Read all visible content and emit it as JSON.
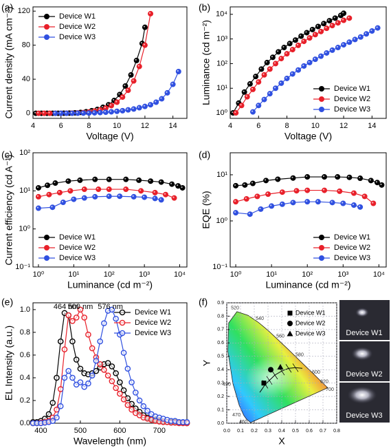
{
  "chart_data": [
    {
      "type": "line",
      "panel_label": "(a)",
      "x_label": "Voltage (V)",
      "y_label": "Current density (mA cm⁻²)",
      "xlim": [
        4,
        15
      ],
      "xticks": [
        4,
        6,
        8,
        10,
        12,
        14
      ],
      "ylim": [
        -6,
        125
      ],
      "yticks": [
        0,
        40,
        80,
        120
      ],
      "legend": "upper left",
      "series": [
        {
          "name": "Device W1",
          "color": "#000000",
          "x": [
            4.2,
            4.6,
            5,
            5.4,
            5.8,
            6.2,
            6.6,
            7,
            7.4,
            7.8,
            8.2,
            8.6,
            9,
            9.4,
            9.8,
            10.2,
            10.6,
            11,
            11.4,
            11.8,
            12
          ],
          "values": [
            0,
            0,
            0,
            0,
            0,
            0.1,
            0.2,
            0.5,
            1,
            1.8,
            3,
            4.5,
            7,
            10,
            15,
            22,
            32,
            45,
            62,
            82,
            101
          ]
        },
        {
          "name": "Device W2",
          "color": "#e8202a",
          "x": [
            4.4,
            4.8,
            5.2,
            5.6,
            6,
            6.4,
            6.8,
            7.2,
            7.6,
            8,
            8.4,
            8.8,
            9.2,
            9.6,
            10,
            10.4,
            10.8,
            11.2,
            11.6,
            12,
            12.4
          ],
          "values": [
            0,
            0,
            0,
            0,
            0,
            0.1,
            0.2,
            0.4,
            0.8,
            1.5,
            2.6,
            4,
            6,
            9,
            13,
            19,
            27,
            38,
            55,
            80,
            117
          ]
        },
        {
          "name": "Device W3",
          "color": "#3050e0",
          "x": [
            5.6,
            6,
            6.4,
            6.8,
            7.2,
            7.6,
            8,
            8.4,
            8.8,
            9.2,
            9.6,
            10,
            10.4,
            10.8,
            11.2,
            11.6,
            12,
            12.4,
            12.8,
            13.2,
            13.6,
            14,
            14.4
          ],
          "values": [
            0,
            0,
            0,
            0,
            0.1,
            0.2,
            0.3,
            0.5,
            0.8,
            1.2,
            1.7,
            2.3,
            3,
            4,
            5,
            6.5,
            8,
            10,
            13,
            17,
            24,
            34,
            49
          ]
        }
      ]
    },
    {
      "type": "line",
      "panel_label": "(b)",
      "x_label": "Voltage (V)",
      "y_label": "Luminance (cd m⁻²)",
      "xlim": [
        4,
        15
      ],
      "xticks": [
        4,
        6,
        8,
        10,
        12,
        14
      ],
      "yscale": "log",
      "ylim": [
        0.6,
        20000
      ],
      "yticks": [
        {
          "value": 1,
          "label": "10⁰"
        },
        {
          "value": 10,
          "label": "10¹"
        },
        {
          "value": 100,
          "label": "10²"
        },
        {
          "value": 1000,
          "label": "10³"
        },
        {
          "value": 10000,
          "label": "10⁴"
        }
      ],
      "legend": "lower right",
      "series": [
        {
          "name": "Device W1",
          "color": "#000000",
          "x": [
            4.2,
            4.6,
            5,
            5.4,
            5.8,
            6.2,
            6.6,
            7,
            7.4,
            7.8,
            8.2,
            8.6,
            9,
            9.4,
            9.8,
            10.2,
            10.6,
            11,
            11.4,
            11.8,
            12
          ],
          "values": [
            1,
            2.5,
            7,
            15,
            30,
            60,
            110,
            180,
            300,
            450,
            650,
            900,
            1300,
            1800,
            2400,
            3200,
            4200,
            5500,
            7000,
            9000,
            11000
          ]
        },
        {
          "name": "Device W2",
          "color": "#e8202a",
          "x": [
            4.4,
            4.8,
            5.2,
            5.6,
            6,
            6.4,
            6.8,
            7.2,
            7.6,
            8,
            8.4,
            8.8,
            9.2,
            9.6,
            10,
            10.4,
            10.8,
            11.2,
            11.6,
            12,
            12.4
          ],
          "values": [
            1,
            2,
            4.5,
            9,
            18,
            35,
            60,
            100,
            160,
            250,
            370,
            550,
            800,
            1100,
            1500,
            2000,
            2700,
            3500,
            4500,
            5700,
            7000
          ]
        },
        {
          "name": "Device W3",
          "color": "#3050e0",
          "x": [
            5.6,
            6,
            6.4,
            6.8,
            7.2,
            7.6,
            8,
            8.4,
            8.8,
            9.2,
            9.6,
            10,
            10.4,
            10.8,
            11.2,
            11.6,
            12,
            12.4,
            12.8,
            13.2,
            13.6,
            14,
            14.4
          ],
          "values": [
            1.1,
            2,
            3.5,
            6,
            10,
            16,
            25,
            38,
            55,
            80,
            110,
            150,
            200,
            270,
            350,
            450,
            580,
            740,
            950,
            1200,
            1600,
            2100,
            2800
          ]
        }
      ]
    },
    {
      "type": "line",
      "panel_label": "(c)",
      "x_label": "Luminance (cd m⁻²)",
      "y_label": "Current efficiency (cd A⁻¹)",
      "xscale": "log",
      "xlim": [
        0.7,
        16000
      ],
      "xticks": [
        {
          "value": 1,
          "label": "10⁰"
        },
        {
          "value": 10,
          "label": "10¹"
        },
        {
          "value": 100,
          "label": "10²"
        },
        {
          "value": 1000,
          "label": "10³"
        },
        {
          "value": 10000,
          "label": "10⁴"
        }
      ],
      "yscale": "log",
      "ylim": [
        0.1,
        100
      ],
      "yticks": [
        {
          "value": 0.1,
          "label": "10⁻¹"
        },
        {
          "value": 1,
          "label": "10⁰"
        },
        {
          "value": 10,
          "label": "10¹"
        },
        {
          "value": 100,
          "label": "10²"
        }
      ],
      "legend": "lower left",
      "series": [
        {
          "name": "Device W1",
          "color": "#000000",
          "x": [
            1,
            1.8,
            3,
            7,
            15,
            40,
            100,
            300,
            700,
            1500,
            3000,
            6000,
            9000,
            12000
          ],
          "values": [
            12,
            14,
            16,
            18,
            19,
            20,
            20,
            20,
            19,
            18,
            17,
            15,
            13.5,
            12
          ]
        },
        {
          "name": "Device W2",
          "color": "#e8202a",
          "x": [
            1,
            2,
            4,
            8,
            20,
            50,
            100,
            300,
            800,
            2000,
            4000,
            7000
          ],
          "values": [
            7,
            8,
            9,
            10,
            11,
            11,
            11,
            11,
            10,
            9,
            8,
            6.5
          ]
        },
        {
          "name": "Device W3",
          "color": "#3050e0",
          "x": [
            1,
            2.5,
            5,
            10,
            20,
            40,
            100,
            200,
            500,
            1000,
            2000,
            3000
          ],
          "values": [
            3.5,
            3.7,
            5,
            6,
            6.5,
            7,
            7.2,
            7.2,
            7,
            6.8,
            6.3,
            5.8
          ]
        }
      ]
    },
    {
      "type": "line",
      "panel_label": "(d)",
      "x_label": "Luminance (cd m⁻²)",
      "y_label": "EQE (%)",
      "xscale": "log",
      "xlim": [
        0.7,
        16000
      ],
      "xticks": [
        {
          "value": 1,
          "label": "10⁰"
        },
        {
          "value": 10,
          "label": "10¹"
        },
        {
          "value": 100,
          "label": "10²"
        },
        {
          "value": 1000,
          "label": "10³"
        },
        {
          "value": 10000,
          "label": "10⁴"
        }
      ],
      "yscale": "log",
      "ylim": [
        0.1,
        30
      ],
      "yticks": [
        {
          "value": 0.1,
          "label": "10⁻¹"
        },
        {
          "value": 1,
          "label": "10⁰"
        },
        {
          "value": 10,
          "label": "10¹"
        }
      ],
      "legend": "lower right",
      "series": [
        {
          "name": "Device W1",
          "color": "#000000",
          "x": [
            1,
            1.8,
            3,
            7,
            15,
            40,
            100,
            300,
            700,
            1500,
            3000,
            6000,
            9000,
            12000
          ],
          "values": [
            5.8,
            6,
            6.5,
            7.5,
            8,
            8.5,
            9,
            9,
            9,
            8.8,
            8.4,
            7.5,
            6.8,
            6
          ]
        },
        {
          "name": "Device W2",
          "color": "#e8202a",
          "x": [
            1,
            2,
            4,
            8,
            20,
            50,
            100,
            300,
            800,
            2000,
            4000,
            7000
          ],
          "values": [
            2.6,
            3,
            3.4,
            3.8,
            4.2,
            4.5,
            4.6,
            4.6,
            4.4,
            4,
            3.4,
            2.4
          ]
        },
        {
          "name": "Device W3",
          "color": "#3050e0",
          "x": [
            1,
            2.5,
            5,
            10,
            20,
            40,
            100,
            200,
            500,
            1000,
            2000,
            3000
          ],
          "values": [
            1.5,
            1.4,
            1.8,
            2.1,
            2.3,
            2.5,
            2.6,
            2.6,
            2.5,
            2.4,
            2.2,
            2.0
          ]
        }
      ]
    },
    {
      "type": "line",
      "panel_label": "(e)",
      "x_label": "Wavelength (nm)",
      "y_label": "EL Intensity (a.u.)",
      "marker": "open",
      "xlim": [
        380,
        770
      ],
      "xticks": [
        400,
        500,
        600,
        700
      ],
      "ylim": [
        0,
        1.06
      ],
      "yticks": [
        {
          "value": 0,
          "label": "0.0"
        },
        0.2,
        0.4,
        0.6,
        0.8,
        {
          "value": 1,
          "label": "1.0"
        }
      ],
      "legend": "upper right",
      "annotations": [
        {
          "text": "464 nm",
          "x": 464
        },
        {
          "text": "500 nm",
          "x": 500
        },
        {
          "text": "576 nm",
          "x": 576
        }
      ],
      "x": [
        380,
        390,
        400,
        410,
        420,
        430,
        440,
        450,
        460,
        470,
        480,
        490,
        500,
        510,
        520,
        530,
        540,
        550,
        560,
        570,
        580,
        590,
        600,
        610,
        620,
        630,
        640,
        650,
        660,
        670,
        680,
        690,
        700,
        710,
        720,
        730,
        740,
        750,
        760,
        770
      ],
      "series": [
        {
          "name": "Device W1",
          "color": "#000000",
          "values": [
            0.01,
            0.01,
            0.02,
            0.04,
            0.08,
            0.18,
            0.4,
            0.72,
            0.97,
            0.95,
            0.72,
            0.56,
            0.48,
            0.44,
            0.43,
            0.44,
            0.46,
            0.49,
            0.52,
            0.53,
            0.5,
            0.44,
            0.36,
            0.29,
            0.22,
            0.17,
            0.13,
            0.1,
            0.07,
            0.05,
            0.04,
            0.03,
            0.02,
            0.015,
            0.01,
            0.01,
            0.01,
            0.005,
            0.005,
            0
          ]
        },
        {
          "name": "Device W2",
          "color": "#e8202a",
          "values": [
            0,
            0,
            0.005,
            0.01,
            0.02,
            0.05,
            0.12,
            0.3,
            0.65,
            0.95,
            0.9,
            0.93,
            1,
            0.93,
            0.78,
            0.66,
            0.58,
            0.52,
            0.47,
            0.42,
            0.37,
            0.31,
            0.26,
            0.21,
            0.16,
            0.12,
            0.09,
            0.07,
            0.05,
            0.04,
            0.03,
            0.02,
            0.015,
            0.01,
            0.01,
            0.005,
            0.005,
            0,
            0,
            0
          ]
        },
        {
          "name": "Device W3",
          "color": "#3050e0",
          "values": [
            0,
            0,
            0,
            0.005,
            0.01,
            0.02,
            0.05,
            0.15,
            0.4,
            0.46,
            0.4,
            0.34,
            0.36,
            0.32,
            0.35,
            0.42,
            0.55,
            0.72,
            0.88,
            0.99,
            1,
            0.92,
            0.78,
            0.62,
            0.48,
            0.36,
            0.27,
            0.2,
            0.15,
            0.11,
            0.08,
            0.06,
            0.05,
            0.04,
            0.03,
            0.02,
            0.02,
            0.01,
            0.01,
            0.01
          ]
        }
      ]
    },
    {
      "type": "cie",
      "panel_label": "(f)",
      "x_label": "X",
      "y_label": "Y",
      "grid": true,
      "legend": "upper right",
      "xlim": [
        0,
        0.8
      ],
      "xticks": [
        {
          "value": 0,
          "label": "0.0"
        },
        0.1,
        0.2,
        0.3,
        0.4,
        0.5,
        0.6,
        0.7,
        0.8
      ],
      "ylim": [
        0,
        0.9
      ],
      "yticks": [
        {
          "value": 0,
          "label": "0.0"
        },
        0.1,
        0.2,
        0.3,
        0.4,
        0.5,
        0.6,
        0.7,
        0.8,
        0.9
      ],
      "locus_labels": [
        "460",
        "470",
        "490",
        "520",
        "540",
        "560",
        "580",
        "600",
        "620",
        "700"
      ],
      "photo_labels": [
        "Device W1",
        "Device W2",
        "Device W3"
      ],
      "series": [
        {
          "name": "Device W1",
          "color": "#000000",
          "marker": "square",
          "x": [
            0.27
          ],
          "values": [
            0.3
          ]
        },
        {
          "name": "Device W2",
          "color": "#000000",
          "marker": "circle",
          "x": [
            0.32
          ],
          "values": [
            0.4
          ]
        },
        {
          "name": "Device W3",
          "color": "#000000",
          "marker": "triangle",
          "x": [
            0.39
          ],
          "values": [
            0.42
          ]
        }
      ]
    }
  ]
}
